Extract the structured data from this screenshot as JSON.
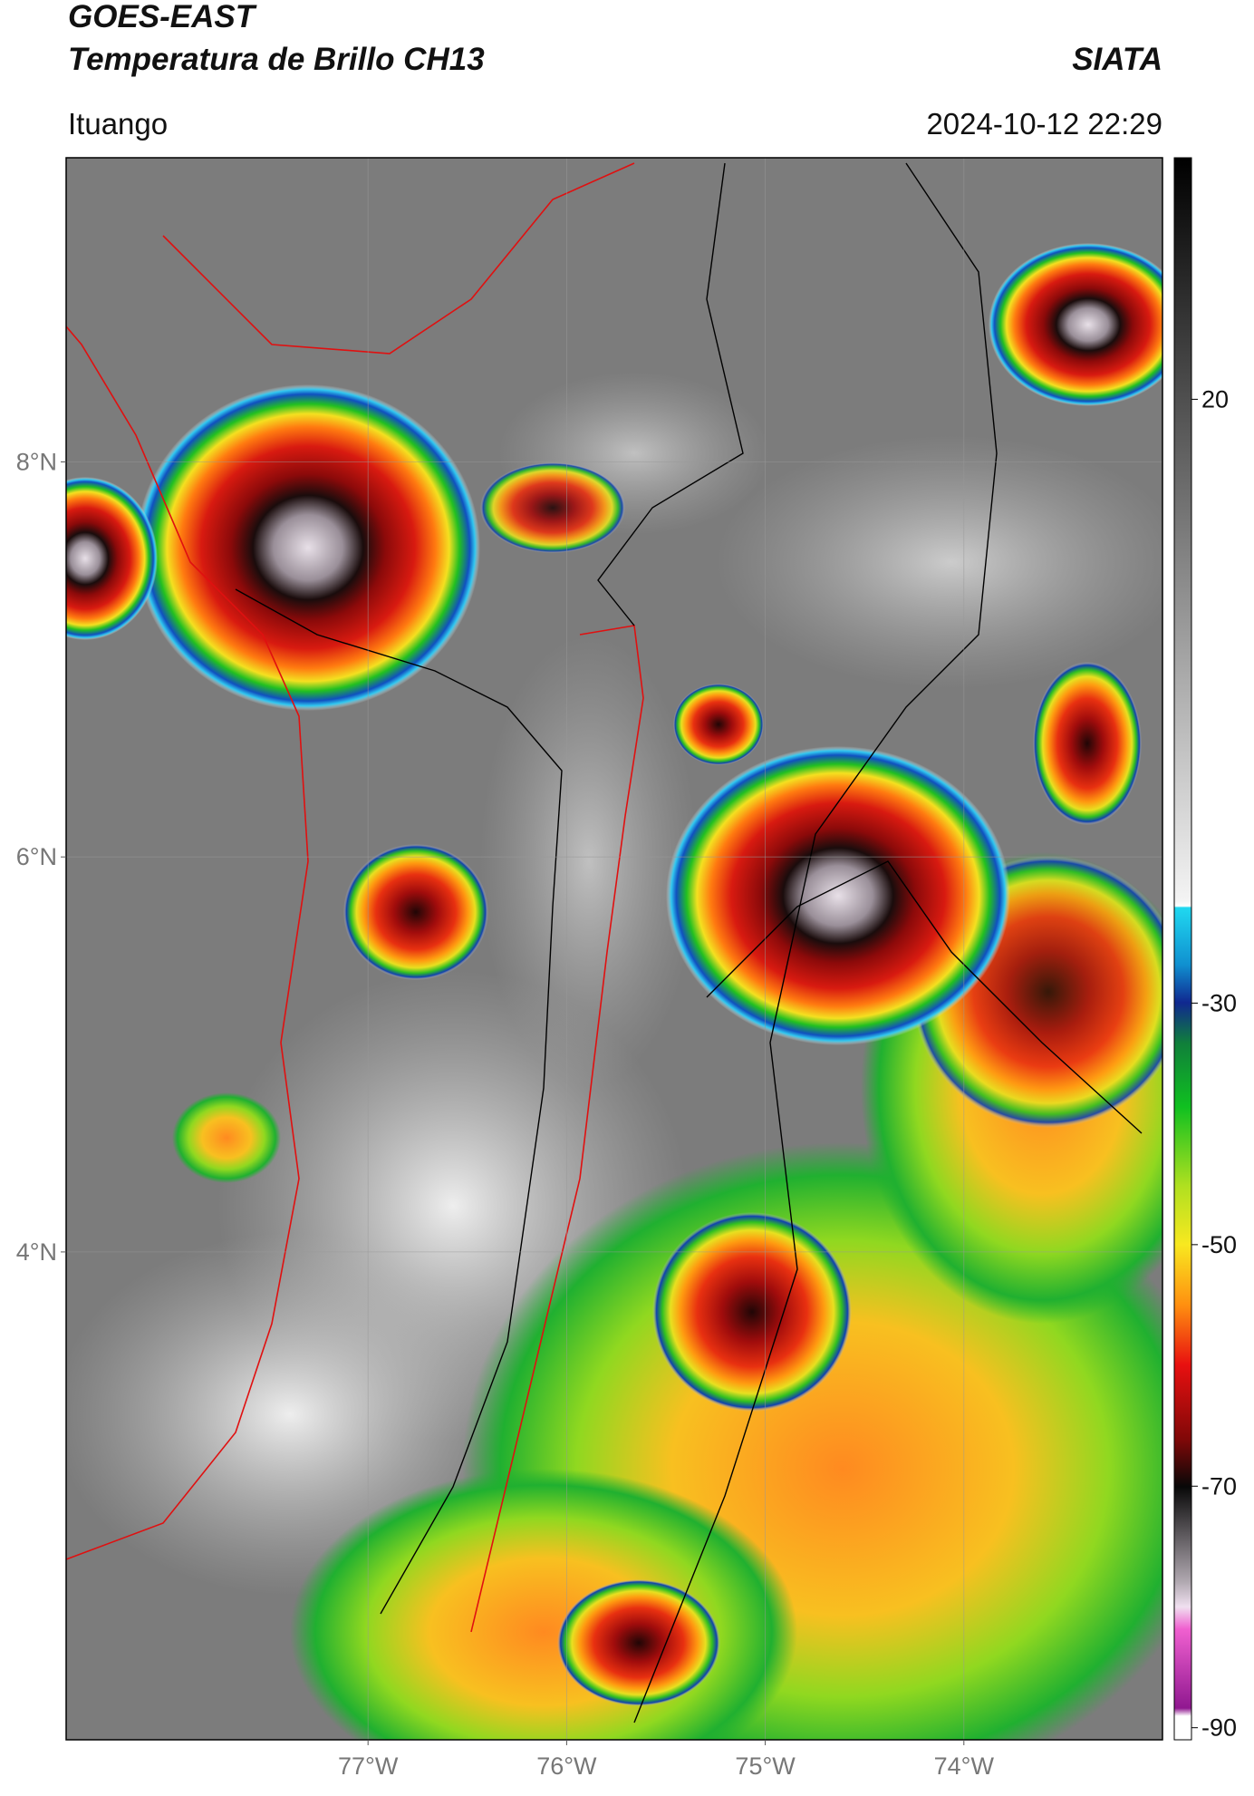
{
  "header": {
    "title": "GOES-EAST",
    "subtitle": "Temperatura de Brillo CH13",
    "source": "SIATA",
    "location": "Ituango",
    "datetime": "2024-10-12 22:29"
  },
  "map": {
    "xlim": [
      -78.52,
      -73.0
    ],
    "ylim": [
      1.53,
      9.54
    ],
    "xticks": [
      {
        "value": -77,
        "label": "77°W"
      },
      {
        "value": -76,
        "label": "76°W"
      },
      {
        "value": -75,
        "label": "75°W"
      },
      {
        "value": -74,
        "label": "74°W"
      }
    ],
    "yticks": [
      {
        "value": 8,
        "label": "8°N"
      },
      {
        "value": 6,
        "label": "6°N"
      },
      {
        "value": 4,
        "label": "4°N"
      }
    ],
    "grid": true
  },
  "colorbar": {
    "lim": [
      -91,
      40
    ],
    "ticks": [
      20,
      -30,
      -50,
      -70,
      -90
    ]
  }
}
